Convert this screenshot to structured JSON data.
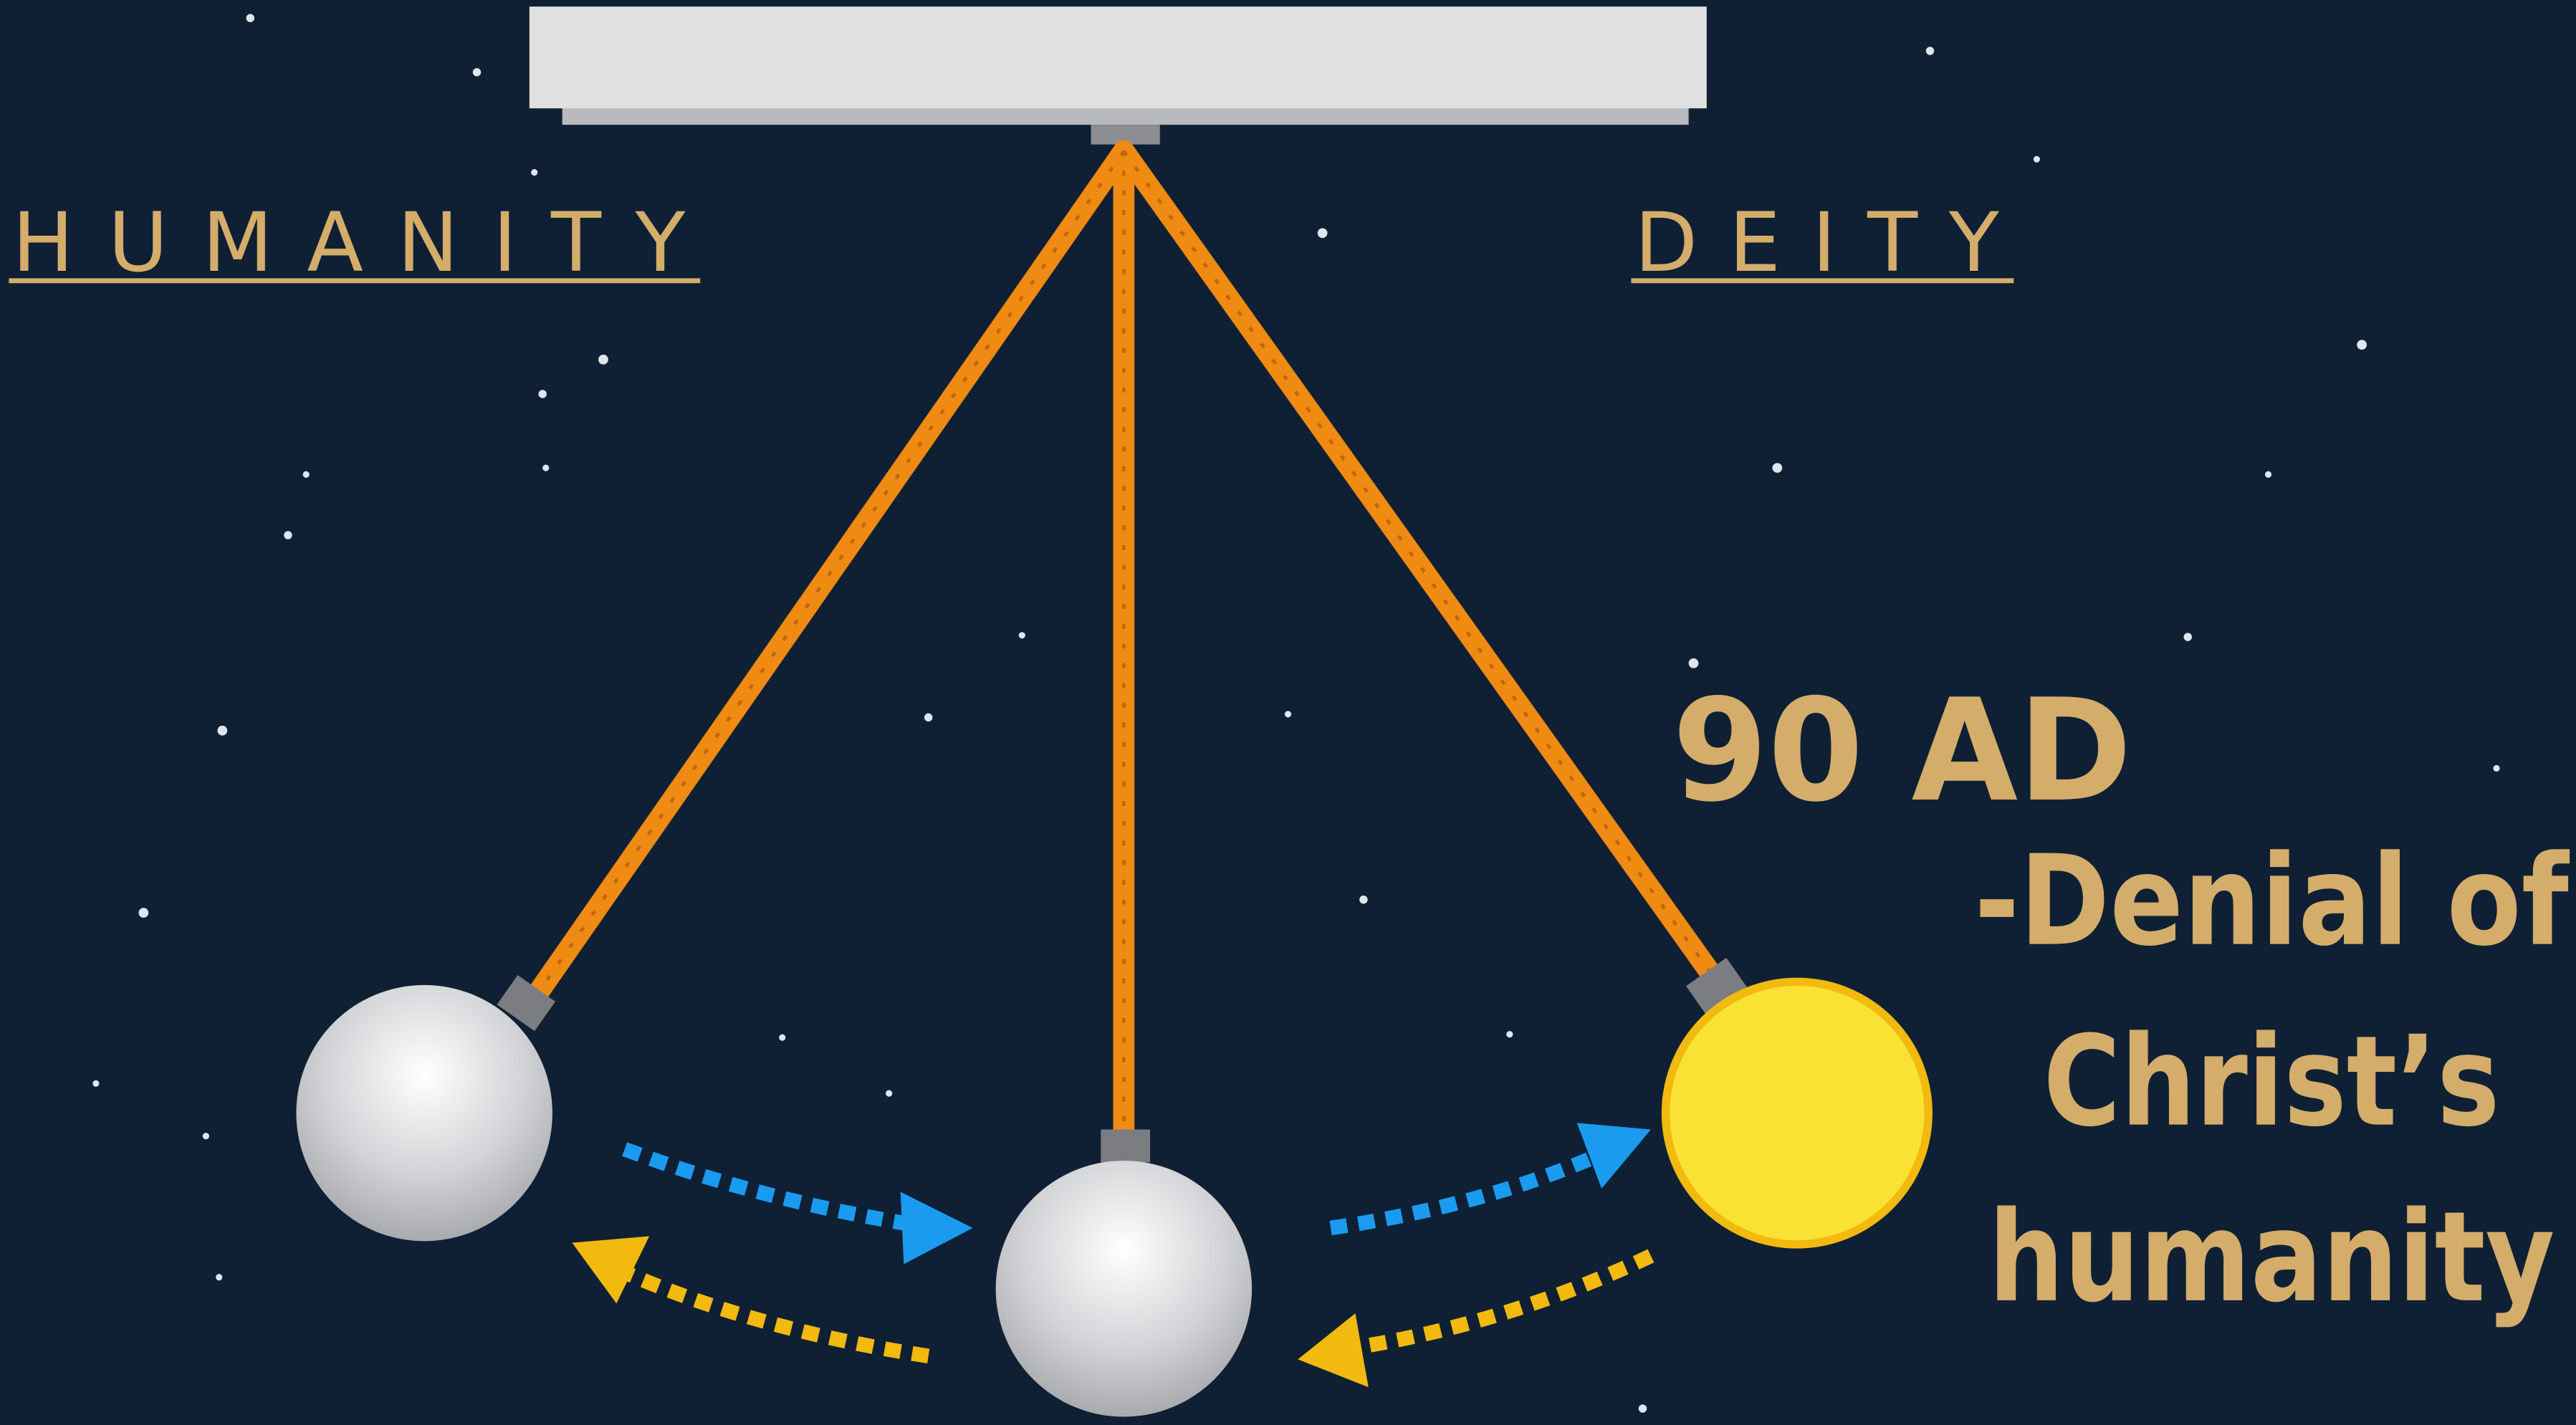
{
  "labels": {
    "left": "HUMANITY",
    "right": "DEITY"
  },
  "year": "90 AD",
  "description": [
    "-Denial of",
    "Christ’s",
    "humanity"
  ]
}
